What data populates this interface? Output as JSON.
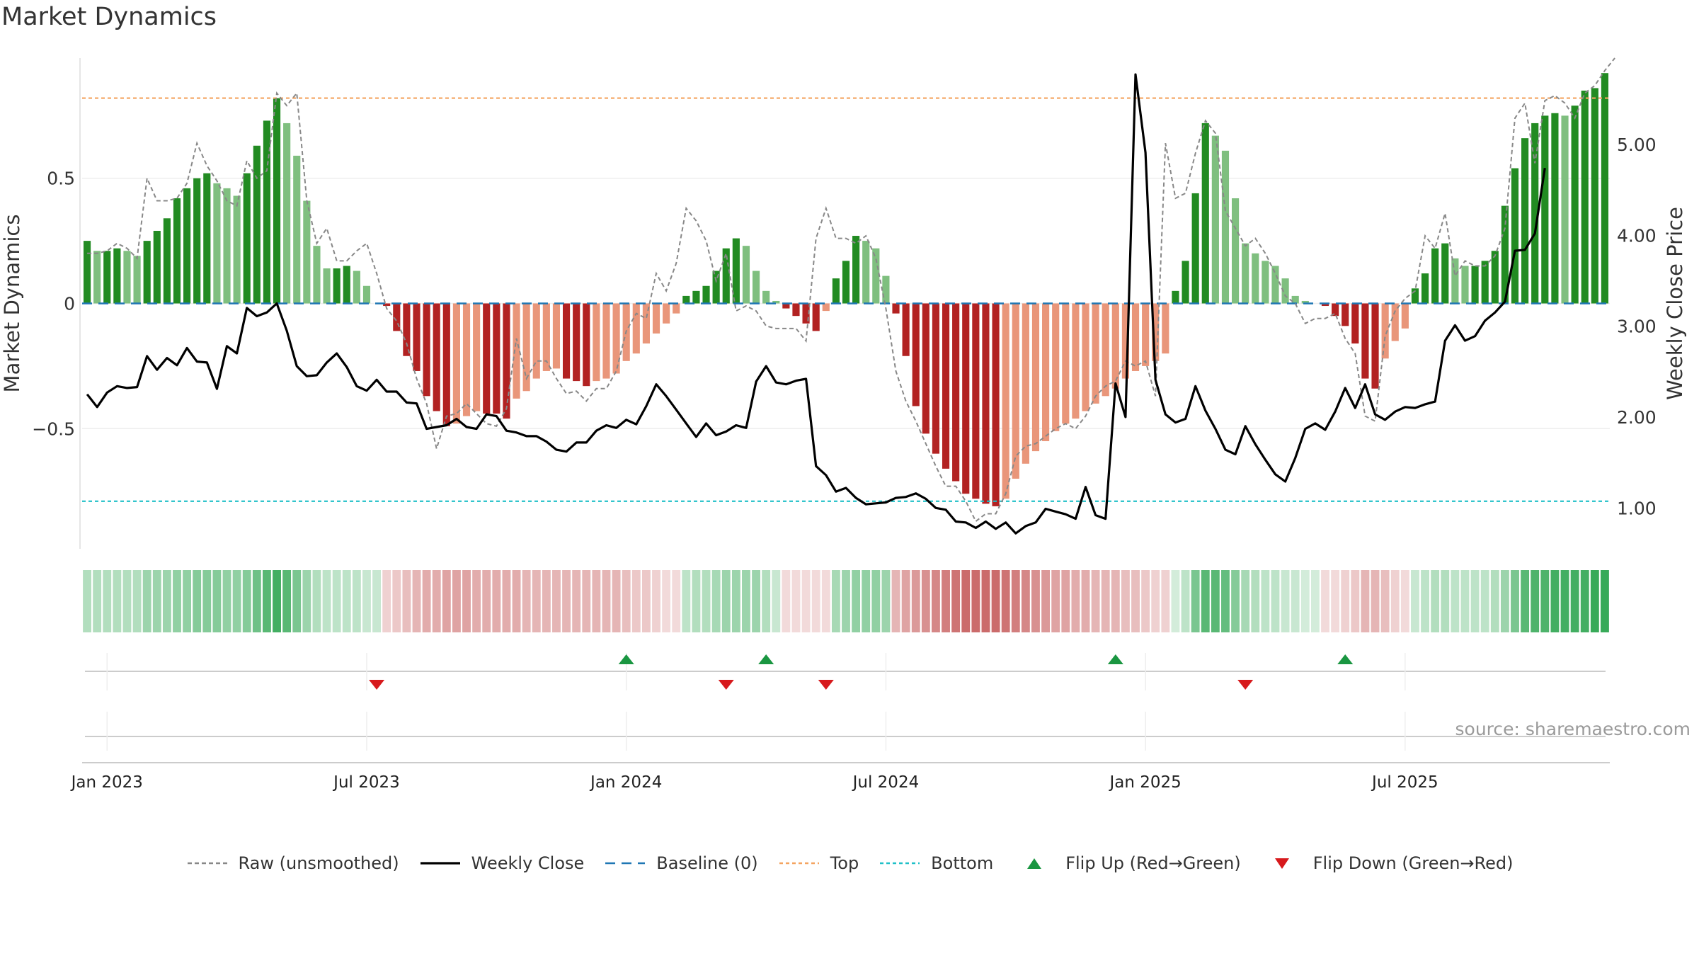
{
  "title": "Market Dynamics",
  "source": "source: sharemaestro.com",
  "chart_data": {
    "type": "bar",
    "title": "Market Dynamics",
    "ylabel_left": "Market Dynamics",
    "ylabel_right": "Weekly Close Price",
    "left_ylim": [
      -0.98,
      0.98
    ],
    "right_ylim": [
      0.55,
      5.95
    ],
    "left_ticks": [
      {
        "v": 0.5,
        "label": "0.5"
      },
      {
        "v": 0,
        "label": "0"
      },
      {
        "v": -0.5,
        "label": "−0.5"
      }
    ],
    "right_ticks": [
      {
        "v": 5.0,
        "label": "5.00"
      },
      {
        "v": 4.0,
        "label": "4.00"
      },
      {
        "v": 3.0,
        "label": "3.00"
      },
      {
        "v": 2.0,
        "label": "2.00"
      },
      {
        "v": 1.0,
        "label": "1.00"
      }
    ],
    "x_ticks": [
      {
        "i": 2,
        "label": "Jan 2023"
      },
      {
        "i": 28,
        "label": "Jul 2023"
      },
      {
        "i": 54,
        "label": "Jan 2024"
      },
      {
        "i": 80,
        "label": "Jul 2024"
      },
      {
        "i": 106,
        "label": "Jan 2025"
      },
      {
        "i": 132,
        "label": "Jul 2025"
      }
    ],
    "top_level": 0.82,
    "bottom_level": -0.79,
    "baseline": 0,
    "colors": {
      "strong_green": "#228b22",
      "weak_green": "#7fbf7f",
      "strong_red": "#b22222",
      "weak_red": "#e9967a",
      "raw": "#888888",
      "close": "#000000",
      "baseline": "#1f77b4",
      "top": "#f4a460",
      "bottom": "#20c0c8",
      "flip_up": "#1a9641",
      "flip_down": "#d7191c"
    },
    "series": [
      {
        "name": "Market Dynamics",
        "values": [
          0.25,
          0.21,
          0.21,
          0.22,
          0.21,
          0.19,
          0.25,
          0.29,
          0.34,
          0.42,
          0.46,
          0.5,
          0.52,
          0.48,
          0.46,
          0.43,
          0.52,
          0.63,
          0.73,
          0.82,
          0.72,
          0.59,
          0.41,
          0.23,
          0.14,
          0.14,
          0.15,
          0.13,
          0.07,
          0.0,
          -0.01,
          -0.11,
          -0.21,
          -0.27,
          -0.37,
          -0.43,
          -0.49,
          -0.48,
          -0.45,
          -0.43,
          -0.44,
          -0.44,
          -0.46,
          -0.38,
          -0.35,
          -0.3,
          -0.27,
          -0.26,
          -0.3,
          -0.31,
          -0.33,
          -0.31,
          -0.3,
          -0.28,
          -0.23,
          -0.2,
          -0.16,
          -0.12,
          -0.08,
          -0.04,
          0.03,
          0.05,
          0.07,
          0.13,
          0.22,
          0.26,
          0.23,
          0.13,
          0.05,
          0.01,
          -0.02,
          -0.05,
          -0.08,
          -0.11,
          -0.03,
          0.1,
          0.17,
          0.27,
          0.25,
          0.22,
          0.11,
          -0.04,
          -0.21,
          -0.41,
          -0.52,
          -0.6,
          -0.66,
          -0.71,
          -0.76,
          -0.78,
          -0.8,
          -0.81,
          -0.78,
          -0.7,
          -0.64,
          -0.59,
          -0.55,
          -0.51,
          -0.48,
          -0.46,
          -0.43,
          -0.4,
          -0.37,
          -0.34,
          -0.3,
          -0.27,
          -0.25,
          -0.23,
          -0.2,
          0.05,
          0.17,
          0.44,
          0.72,
          0.67,
          0.61,
          0.42,
          0.24,
          0.2,
          0.17,
          0.15,
          0.1,
          0.03,
          0.01,
          0.0,
          -0.01,
          -0.05,
          -0.09,
          -0.16,
          -0.3,
          -0.34,
          -0.22,
          -0.15,
          -0.1,
          0.06,
          0.12,
          0.22,
          0.24,
          0.18,
          0.15,
          0.15,
          0.17,
          0.21,
          0.39,
          0.54,
          0.66,
          0.72,
          0.75,
          0.76,
          0.75,
          0.79,
          0.85,
          0.86,
          0.92
        ]
      },
      {
        "name": "Raw (unsmoothed)",
        "values": [
          0.2,
          0.2,
          0.21,
          0.24,
          0.22,
          0.18,
          0.5,
          0.41,
          0.41,
          0.42,
          0.48,
          0.64,
          0.55,
          0.49,
          0.41,
          0.39,
          0.57,
          0.5,
          0.53,
          0.84,
          0.79,
          0.84,
          0.41,
          0.24,
          0.3,
          0.17,
          0.17,
          0.21,
          0.24,
          0.12,
          -0.02,
          -0.07,
          -0.16,
          -0.3,
          -0.4,
          -0.58,
          -0.45,
          -0.44,
          -0.4,
          -0.44,
          -0.48,
          -0.49,
          -0.42,
          -0.14,
          -0.3,
          -0.23,
          -0.23,
          -0.3,
          -0.36,
          -0.35,
          -0.39,
          -0.34,
          -0.34,
          -0.27,
          -0.11,
          -0.04,
          -0.06,
          0.12,
          0.05,
          0.16,
          0.38,
          0.33,
          0.25,
          0.09,
          0.2,
          -0.03,
          -0.01,
          -0.03,
          -0.09,
          -0.1,
          -0.1,
          -0.1,
          -0.15,
          0.26,
          0.38,
          0.26,
          0.26,
          0.24,
          0.27,
          0.18,
          -0.02,
          -0.27,
          -0.39,
          -0.47,
          -0.56,
          -0.65,
          -0.73,
          -0.73,
          -0.79,
          -0.87,
          -0.84,
          -0.84,
          -0.76,
          -0.61,
          -0.57,
          -0.56,
          -0.53,
          -0.5,
          -0.48,
          -0.5,
          -0.45,
          -0.37,
          -0.33,
          -0.31,
          -0.23,
          -0.25,
          -0.23,
          -0.37,
          0.64,
          0.42,
          0.44,
          0.6,
          0.73,
          0.68,
          0.37,
          0.3,
          0.23,
          0.26,
          0.2,
          0.12,
          0.03,
          0.0,
          -0.08,
          -0.06,
          -0.06,
          -0.04,
          -0.14,
          -0.2,
          -0.45,
          -0.47,
          -0.13,
          -0.03,
          0.02,
          0.05,
          0.27,
          0.22,
          0.36,
          0.11,
          0.17,
          0.15,
          0.15,
          0.19,
          0.3,
          0.74,
          0.8,
          0.56,
          0.81,
          0.83,
          0.8,
          0.74,
          0.84,
          0.87,
          0.93,
          0.98
        ]
      },
      {
        "name": "Weekly Close",
        "values": [
          2.25,
          2.11,
          2.27,
          2.34,
          2.32,
          2.33,
          2.67,
          2.52,
          2.65,
          2.57,
          2.76,
          2.61,
          2.6,
          2.31,
          2.78,
          2.7,
          3.2,
          3.11,
          3.15,
          3.25,
          2.95,
          2.56,
          2.45,
          2.46,
          2.6,
          2.7,
          2.55,
          2.34,
          2.29,
          2.41,
          2.28,
          2.28,
          2.16,
          2.15,
          1.87,
          1.89,
          1.91,
          1.98,
          1.89,
          1.87,
          2.03,
          2.01,
          1.85,
          1.83,
          1.79,
          1.79,
          1.73,
          1.64,
          1.62,
          1.72,
          1.72,
          1.85,
          1.91,
          1.88,
          1.97,
          1.92,
          2.12,
          2.36,
          2.23,
          2.08,
          1.93,
          1.78,
          1.93,
          1.8,
          1.84,
          1.91,
          1.88,
          2.39,
          2.56,
          2.38,
          2.36,
          2.4,
          2.42,
          1.46,
          1.36,
          1.18,
          1.22,
          1.11,
          1.04,
          1.05,
          1.06,
          1.11,
          1.12,
          1.16,
          1.1,
          1.0,
          0.98,
          0.85,
          0.84,
          0.78,
          0.85,
          0.77,
          0.84,
          0.72,
          0.8,
          0.84,
          0.99,
          0.96,
          0.93,
          0.88,
          1.23,
          0.92,
          0.88,
          2.37,
          2.0,
          5.77,
          4.91,
          2.41,
          2.03,
          1.94,
          1.98,
          2.34,
          2.07,
          1.87,
          1.64,
          1.59,
          1.9,
          1.7,
          1.53,
          1.37,
          1.29,
          1.55,
          1.87,
          1.93,
          1.86,
          2.06,
          2.32,
          2.1,
          2.36,
          2.03,
          1.97,
          2.06,
          2.11,
          2.1,
          2.14,
          2.17,
          2.84,
          3.01,
          2.84,
          2.89,
          3.06,
          3.15,
          3.27,
          3.83,
          3.84,
          4.02,
          4.74
        ]
      }
    ],
    "regime_strip": {
      "levels": [
        0.35,
        0.35,
        0.35,
        0.35,
        0.35,
        0.35,
        0.45,
        0.45,
        0.45,
        0.5,
        0.5,
        0.55,
        0.55,
        0.55,
        0.5,
        0.5,
        0.55,
        0.65,
        0.75,
        0.85,
        0.75,
        0.6,
        0.45,
        0.35,
        0.3,
        0.3,
        0.3,
        0.3,
        0.25,
        0.25,
        0.25,
        0.3,
        0.35,
        0.4,
        0.45,
        0.45,
        0.5,
        0.5,
        0.5,
        0.45,
        0.45,
        0.45,
        0.45,
        0.45,
        0.4,
        0.4,
        0.4,
        0.4,
        0.4,
        0.4,
        0.4,
        0.4,
        0.4,
        0.4,
        0.35,
        0.3,
        0.3,
        0.25,
        0.2,
        0.2,
        0.3,
        0.35,
        0.35,
        0.4,
        0.45,
        0.45,
        0.45,
        0.45,
        0.35,
        0.25,
        0.2,
        0.2,
        0.2,
        0.2,
        0.2,
        0.4,
        0.45,
        0.5,
        0.5,
        0.5,
        0.45,
        0.4,
        0.5,
        0.55,
        0.6,
        0.65,
        0.7,
        0.75,
        0.8,
        0.8,
        0.8,
        0.8,
        0.75,
        0.7,
        0.65,
        0.6,
        0.55,
        0.5,
        0.5,
        0.45,
        0.45,
        0.4,
        0.4,
        0.4,
        0.35,
        0.35,
        0.3,
        0.25,
        0.25,
        0.2,
        0.3,
        0.6,
        0.75,
        0.75,
        0.7,
        0.55,
        0.4,
        0.35,
        0.3,
        0.3,
        0.25,
        0.25,
        0.2,
        0.2,
        0.2,
        0.2,
        0.25,
        0.3,
        0.4,
        0.4,
        0.35,
        0.25,
        0.2,
        0.25,
        0.3,
        0.35,
        0.35,
        0.3,
        0.3,
        0.3,
        0.3,
        0.35,
        0.45,
        0.6,
        0.75,
        0.8,
        0.8,
        0.85,
        0.85,
        0.85,
        0.85,
        0.9,
        0.9,
        0.95
      ]
    },
    "flip_up_indices": [
      54,
      68,
      103,
      126
    ],
    "flip_down_indices": [
      29,
      64,
      74,
      116
    ],
    "legend": [
      {
        "key": "raw",
        "label": "Raw (unsmoothed)",
        "style": "dashed"
      },
      {
        "key": "close",
        "label": "Weekly Close",
        "style": "solid"
      },
      {
        "key": "baseline",
        "label": "Baseline (0)",
        "style": "dash"
      },
      {
        "key": "top",
        "label": "Top",
        "style": "dotted"
      },
      {
        "key": "bottom",
        "label": "Bottom",
        "style": "dotted"
      },
      {
        "key": "flip_up",
        "label": "Flip Up (Red→Green)",
        "style": "tri-up"
      },
      {
        "key": "flip_down",
        "label": "Flip Down (Green→Red)",
        "style": "tri-down"
      }
    ],
    "legend_position": "bottom"
  }
}
